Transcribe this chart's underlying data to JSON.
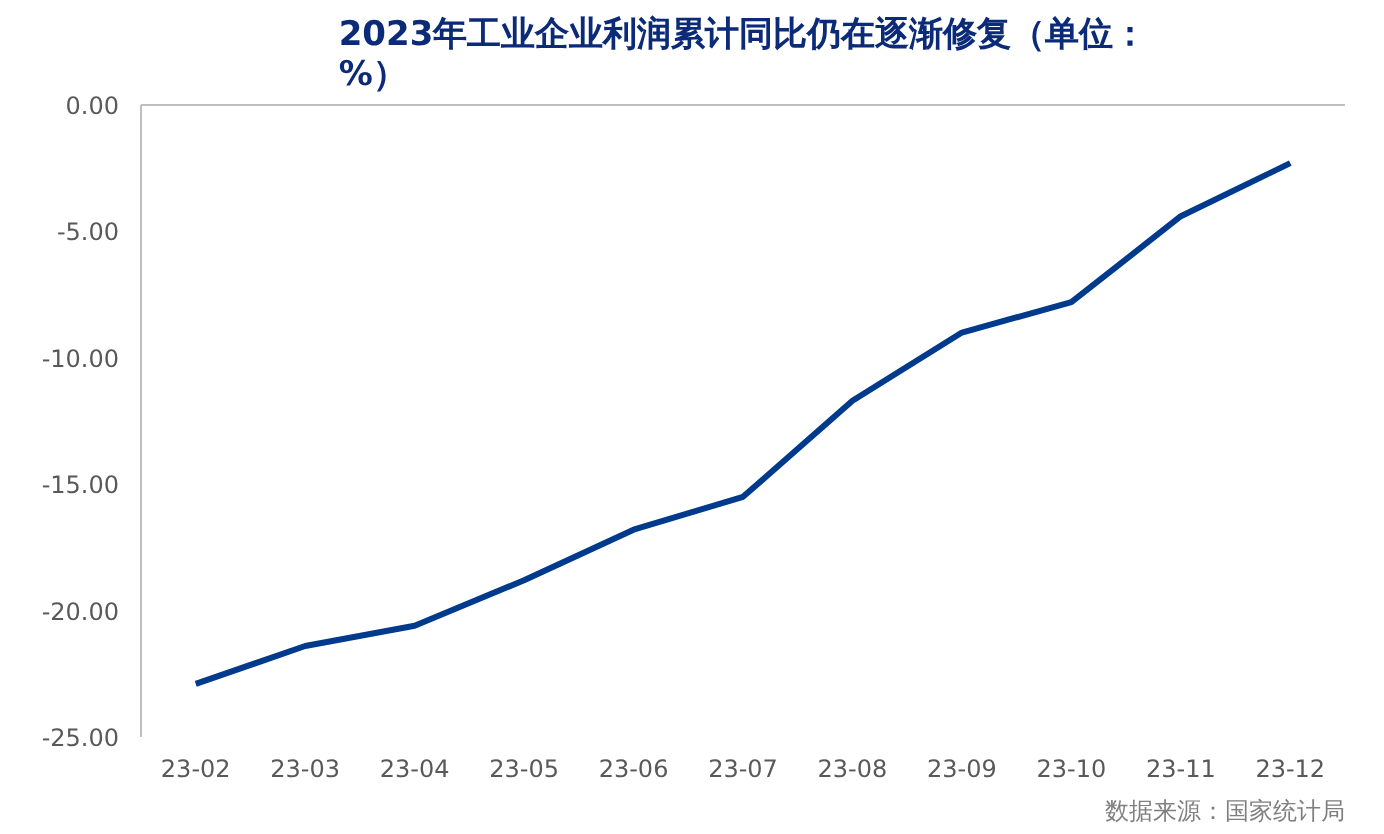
{
  "chart_data": {
    "type": "line",
    "title": "2023年工业企业利润累计同比仍在逐渐修复（单位：%）",
    "categories": [
      "23-02",
      "23-03",
      "23-04",
      "23-05",
      "23-06",
      "23-07",
      "23-08",
      "23-09",
      "23-10",
      "23-11",
      "23-12"
    ],
    "series": [
      {
        "color": "#003a8c",
        "values": [
          -22.9,
          -21.4,
          -20.6,
          -18.8,
          -16.8,
          -15.5,
          -11.7,
          -9.0,
          -7.8,
          -4.4,
          -2.3
        ]
      }
    ],
    "ylim": [
      -25,
      0
    ],
    "yticks": [
      {
        "value": -25,
        "label": "-25.00"
      },
      {
        "value": -20,
        "label": "-20.00"
      },
      {
        "value": -15,
        "label": "-15.00"
      },
      {
        "value": -10,
        "label": "-10.00"
      },
      {
        "value": -5,
        "label": "-5.00"
      },
      {
        "value": 0,
        "label": "0.00"
      }
    ],
    "grid": false,
    "marker": "none",
    "line_style": "solid",
    "annotations": [
      "数据来源：国家统计局"
    ]
  }
}
